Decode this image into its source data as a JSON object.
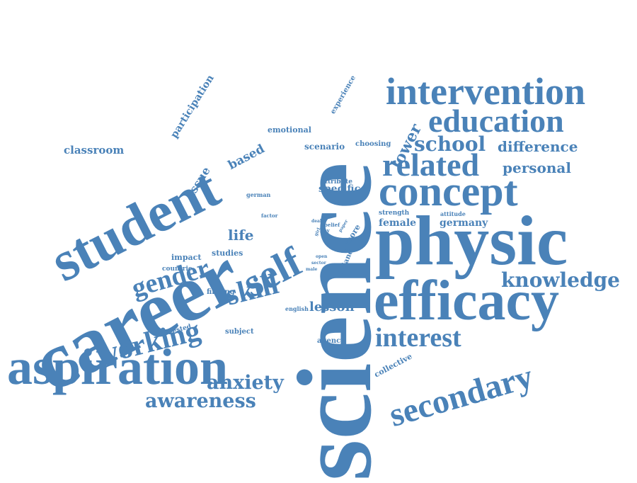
{
  "colors": {
    "word": "#4a82b8",
    "background": "#ffffff"
  },
  "words": [
    "science",
    "career",
    "student",
    "physic",
    "efficacy",
    "aspiration",
    "intervention",
    "concept",
    "education",
    "related",
    "secondary",
    "self",
    "working",
    "skill",
    "gender",
    "knowledge",
    "interest",
    "awareness",
    "anxiety",
    "school",
    "difference",
    "personal",
    "lower",
    "classroom",
    "participation",
    "issue",
    "based",
    "emotional",
    "scenario",
    "choosing",
    "experience",
    "life",
    "lesson",
    "female",
    "germany",
    "specific",
    "impact",
    "studies",
    "countrie",
    "finding",
    "interested",
    "subject",
    "agency",
    "collective",
    "english",
    "attribute",
    "german",
    "factor",
    "strength",
    "attitude",
    "more",
    "finland",
    "deal",
    "belief",
    "paper",
    "girl",
    "boy",
    "great",
    "open",
    "sector",
    "male"
  ]
}
